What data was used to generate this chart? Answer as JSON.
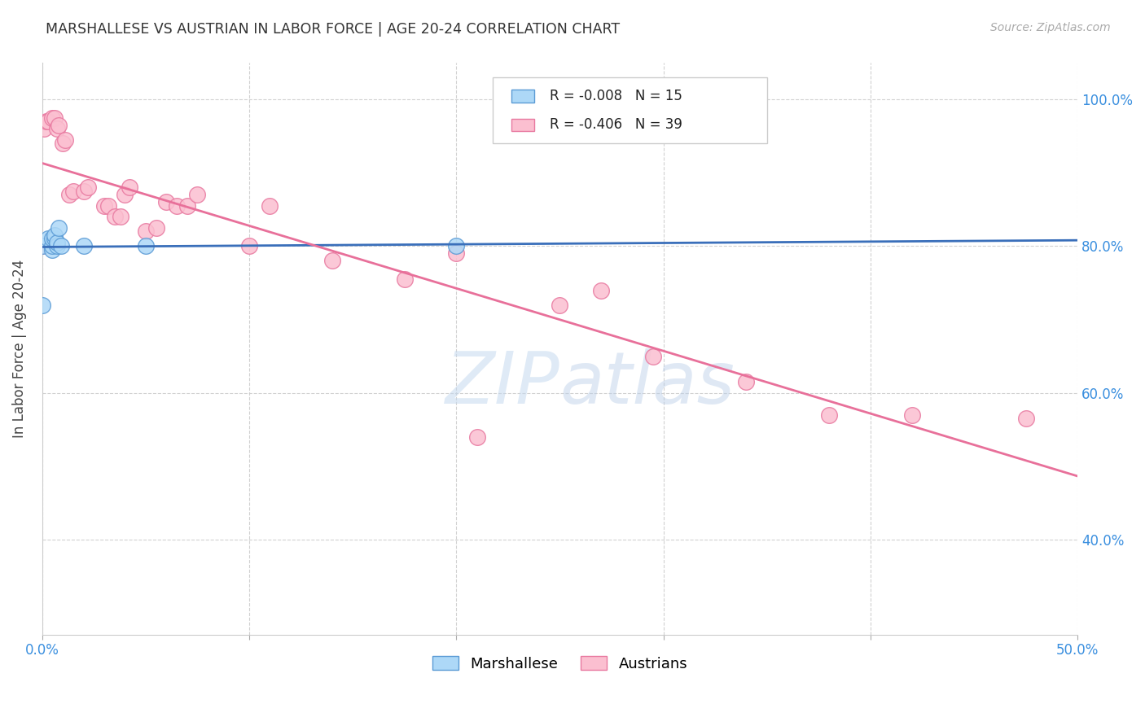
{
  "title": "MARSHALLESE VS AUSTRIAN IN LABOR FORCE | AGE 20-24 CORRELATION CHART",
  "source": "Source: ZipAtlas.com",
  "ylabel": "In Labor Force | Age 20-24",
  "xlim": [
    0.0,
    0.5
  ],
  "ylim": [
    0.27,
    1.05
  ],
  "yticks": [
    0.4,
    0.6,
    0.8,
    1.0
  ],
  "yticklabels": [
    "40.0%",
    "60.0%",
    "80.0%",
    "100.0%"
  ],
  "watermark": "ZIPatlas",
  "legend_r_blue": "R = -0.008",
  "legend_n_blue": "N = 15",
  "legend_r_pink": "R = -0.406",
  "legend_n_pink": "N = 39",
  "blue_fill": "#add8f7",
  "blue_edge": "#5b9bd5",
  "pink_fill": "#fbbfd0",
  "pink_edge": "#e879a0",
  "blue_line": "#3a6fba",
  "pink_line": "#e8709a",
  "marshallese_x": [
    0.0,
    0.0,
    0.003,
    0.005,
    0.005,
    0.005,
    0.006,
    0.006,
    0.007,
    0.007,
    0.008,
    0.009,
    0.02,
    0.05,
    0.2
  ],
  "marshallese_y": [
    0.72,
    0.8,
    0.81,
    0.795,
    0.8,
    0.81,
    0.81,
    0.815,
    0.8,
    0.805,
    0.825,
    0.8,
    0.8,
    0.8,
    0.8
  ],
  "austrians_x": [
    0.0,
    0.001,
    0.002,
    0.003,
    0.005,
    0.006,
    0.007,
    0.008,
    0.01,
    0.011,
    0.013,
    0.015,
    0.02,
    0.022,
    0.03,
    0.032,
    0.035,
    0.038,
    0.04,
    0.042,
    0.05,
    0.055,
    0.06,
    0.065,
    0.07,
    0.075,
    0.1,
    0.11,
    0.14,
    0.175,
    0.2,
    0.21,
    0.25,
    0.27,
    0.295,
    0.34,
    0.38,
    0.42,
    0.475
  ],
  "austrians_y": [
    0.8,
    0.96,
    0.97,
    0.97,
    0.975,
    0.975,
    0.96,
    0.965,
    0.94,
    0.945,
    0.87,
    0.875,
    0.875,
    0.88,
    0.855,
    0.855,
    0.84,
    0.84,
    0.87,
    0.88,
    0.82,
    0.825,
    0.86,
    0.855,
    0.855,
    0.87,
    0.8,
    0.855,
    0.78,
    0.755,
    0.79,
    0.54,
    0.72,
    0.74,
    0.65,
    0.615,
    0.57,
    0.57,
    0.565
  ]
}
